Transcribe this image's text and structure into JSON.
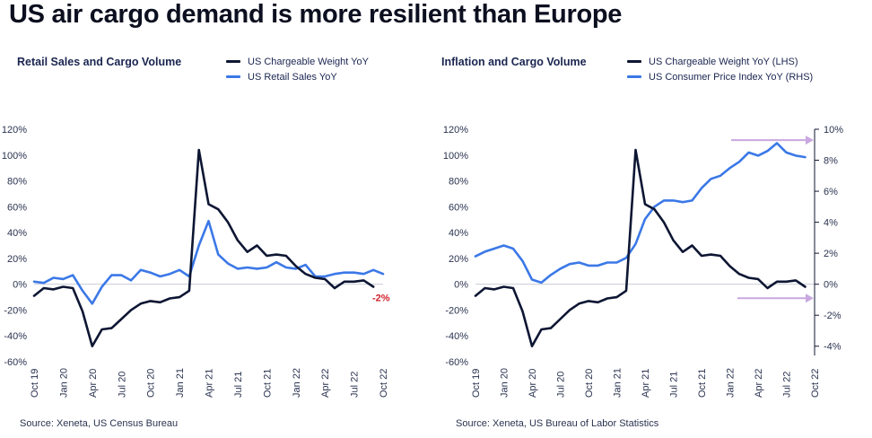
{
  "title": "US air cargo demand is more resilient than Europe",
  "charts": [
    {
      "subtitle": "Retail Sales and Cargo Volume",
      "legend": [
        "US Chargeable Weight YoY",
        "US Retail Sales YoY"
      ],
      "source": "Source: Xeneta, US Census Bureau",
      "annotation": "-2%"
    },
    {
      "subtitle": "Inflation and Cargo Volume",
      "legend": [
        "US Chargeable Weight YoY (LHS)",
        "US Consumer Price Index YoY (RHS)"
      ],
      "source": "Source: Xeneta, US Bureau of Labor Statistics"
    }
  ],
  "colors": {
    "dark": "#0d1633",
    "blue": "#3b78e7",
    "arrow": "#c9a7e0",
    "annotation": "#d0202b"
  },
  "chart_data": [
    {
      "type": "line",
      "title": "Retail Sales and Cargo Volume",
      "x": [
        "Oct 19",
        "Nov 19",
        "Dec 19",
        "Jan 20",
        "Feb 20",
        "Mar 20",
        "Apr 20",
        "May 20",
        "Jun 20",
        "Jul 20",
        "Aug 20",
        "Sep 20",
        "Oct 20",
        "Nov 20",
        "Dec 20",
        "Jan 21",
        "Feb 21",
        "Mar 21",
        "Apr 21",
        "May 21",
        "Jun 21",
        "Jul 21",
        "Aug 21",
        "Sep 21",
        "Oct 21",
        "Nov 21",
        "Dec 21",
        "Jan 22",
        "Feb 22",
        "Mar 22",
        "Apr 22",
        "May 22",
        "Jun 22",
        "Jul 22",
        "Aug 22",
        "Sep 22",
        "Oct 22"
      ],
      "xtick_labels": [
        "Oct 19",
        "Jan 20",
        "Apr 20",
        "Jul 20",
        "Oct 20",
        "Jan 21",
        "Apr 21",
        "Jul 21",
        "Oct 21",
        "Jan 22",
        "Apr 22",
        "Jul 22",
        "Oct 22"
      ],
      "ylim": [
        -60,
        120
      ],
      "yticks": [
        -60,
        -40,
        -20,
        0,
        20,
        40,
        60,
        80,
        100,
        120
      ],
      "ytick_labels": [
        "-60%",
        "-40%",
        "-20%",
        "0%",
        "20%",
        "40%",
        "60%",
        "80%",
        "100%",
        "120%"
      ],
      "series": [
        {
          "name": "US Chargeable Weight YoY",
          "values": [
            -9,
            -3,
            -4,
            -2,
            -3,
            -21,
            -48,
            -35,
            -34,
            -27,
            -20,
            -15,
            -13,
            -14,
            -11,
            -10,
            -5,
            104,
            62,
            58,
            48,
            34,
            25,
            30,
            22,
            23,
            22,
            14,
            8,
            5,
            4,
            -3,
            2,
            2,
            3,
            -2,
            null
          ]
        },
        {
          "name": "US Retail Sales YoY",
          "values": [
            2,
            1,
            5,
            4,
            7,
            -5,
            -15,
            -2,
            7,
            7,
            3,
            11,
            9,
            6,
            8,
            11,
            6,
            30,
            49,
            23,
            16,
            12,
            13,
            12,
            13,
            17,
            13,
            12,
            15,
            6,
            6,
            8,
            9,
            9,
            8,
            11,
            8
          ]
        }
      ],
      "annotation": {
        "x": "Oct 22",
        "y": -2,
        "text": "-2%"
      }
    },
    {
      "type": "line",
      "title": "Inflation and Cargo Volume",
      "x": [
        "Oct 19",
        "Nov 19",
        "Dec 19",
        "Jan 20",
        "Feb 20",
        "Mar 20",
        "Apr 20",
        "May 20",
        "Jun 20",
        "Jul 20",
        "Aug 20",
        "Sep 20",
        "Oct 20",
        "Nov 20",
        "Dec 20",
        "Jan 21",
        "Feb 21",
        "Mar 21",
        "Apr 21",
        "May 21",
        "Jun 21",
        "Jul 21",
        "Aug 21",
        "Sep 21",
        "Oct 21",
        "Nov 21",
        "Dec 21",
        "Jan 22",
        "Feb 22",
        "Mar 22",
        "Apr 22",
        "May 22",
        "Jun 22",
        "Jul 22",
        "Aug 22",
        "Sep 22",
        "Oct 22"
      ],
      "xtick_labels": [
        "Oct 19",
        "Jan 20",
        "Apr 20",
        "Jul 20",
        "Oct 20",
        "Jan 21",
        "Apr 21",
        "Jul 21",
        "Oct 21",
        "Jan 22",
        "Apr 22",
        "Jul 22",
        "Oct 22"
      ],
      "ylim_left": [
        -60,
        120
      ],
      "yticks_left": [
        -60,
        -40,
        -20,
        0,
        20,
        40,
        60,
        80,
        100,
        120
      ],
      "ytick_labels_left": [
        "-60%",
        "-40%",
        "-20%",
        "0%",
        "20%",
        "40%",
        "60%",
        "80%",
        "100%",
        "120%"
      ],
      "ylim_right": [
        -5,
        10
      ],
      "yticks_right": [
        -4,
        -2,
        0,
        2,
        4,
        6,
        8,
        10
      ],
      "ytick_labels_right": [
        "-4%",
        "-2%",
        "0%",
        "2%",
        "4%",
        "6%",
        "8%",
        "10%"
      ],
      "series": [
        {
          "name": "US Chargeable Weight YoY (LHS)",
          "axis": "left",
          "values": [
            -9,
            -3,
            -4,
            -2,
            -3,
            -21,
            -48,
            -35,
            -34,
            -27,
            -20,
            -15,
            -13,
            -14,
            -11,
            -10,
            -5,
            104,
            62,
            58,
            48,
            34,
            25,
            30,
            22,
            23,
            22,
            14,
            8,
            5,
            4,
            -3,
            2,
            2,
            3,
            -2,
            null
          ]
        },
        {
          "name": "US Consumer Price Index YoY (RHS)",
          "axis": "right",
          "values": [
            1.8,
            2.1,
            2.3,
            2.5,
            2.3,
            1.5,
            0.3,
            0.1,
            0.6,
            1.0,
            1.3,
            1.4,
            1.2,
            1.2,
            1.4,
            1.4,
            1.7,
            2.6,
            4.2,
            5.0,
            5.4,
            5.4,
            5.3,
            5.4,
            6.2,
            6.8,
            7.0,
            7.5,
            7.9,
            8.5,
            8.3,
            8.6,
            9.1,
            8.5,
            8.3,
            8.2,
            null
          ]
        }
      ]
    }
  ]
}
